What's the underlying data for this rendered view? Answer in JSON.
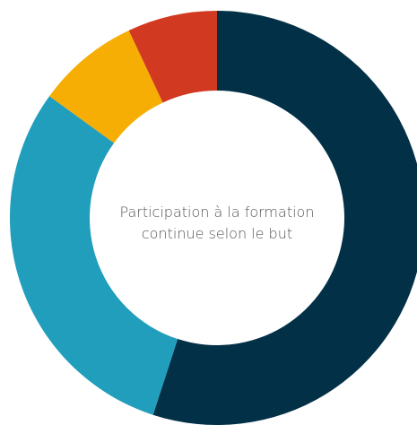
{
  "chart_data": {
    "type": "donut",
    "title": [
      "Participation à la formation",
      "continue selon le but"
    ],
    "values": [
      55,
      30,
      8,
      7
    ],
    "colors": [
      "#023047",
      "#219ebc",
      "#f6ae04",
      "#d13a21"
    ]
  }
}
